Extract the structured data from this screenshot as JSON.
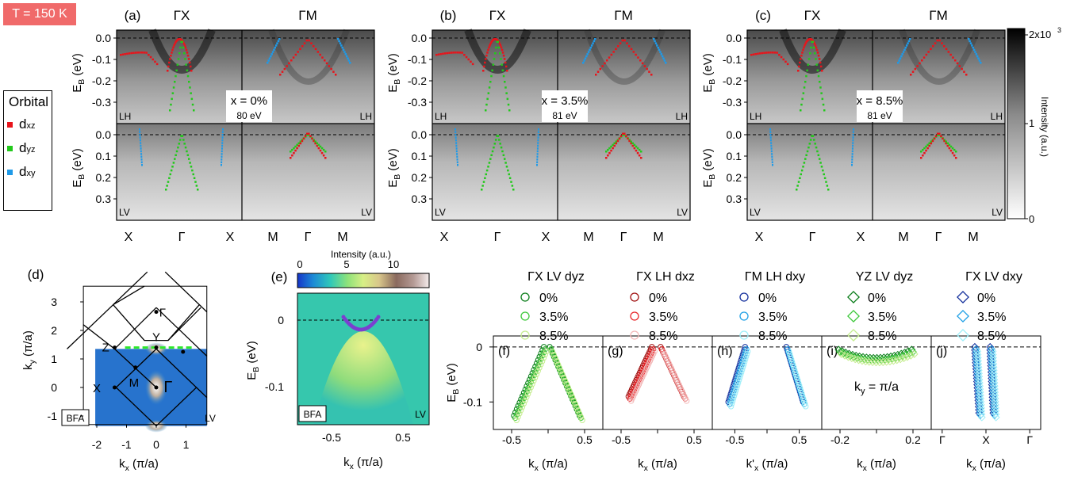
{
  "temperature_label": "T = 150 K",
  "legend": {
    "title": "Orbital",
    "items": [
      {
        "main": "d",
        "sub": "xz",
        "color": "#e8141b"
      },
      {
        "main": "d",
        "sub": "yz",
        "color": "#22c91b"
      },
      {
        "main": "d",
        "sub": "xy",
        "color": "#1f9ae8"
      }
    ]
  },
  "colorbar_gray": {
    "ticks": [
      "2x10",
      "1",
      "0"
    ],
    "exponent": "3",
    "label": "Intensity (a.u.)"
  },
  "colorbar_e": {
    "ticks": [
      "0",
      "5",
      "10"
    ],
    "label": "Intensity (a.u.)"
  },
  "arpes_panels": [
    {
      "letter": "(a)",
      "doping": "x = 0%",
      "energy": "80 eV"
    },
    {
      "letter": "(b)",
      "doping": "x = 3.5%",
      "energy": "81 eV"
    },
    {
      "letter": "(c)",
      "doping": "x = 8.5%",
      "energy": "81 eV"
    }
  ],
  "arpes_common": {
    "dir_left": "ΓX",
    "dir_right": "ΓM",
    "ylabel": "E",
    "ylabel_sub": "B",
    "ylabel_unit": " (eV)",
    "yticks": [
      "0.0",
      "-0.1",
      "-0.2",
      "-0.3"
    ],
    "yticks_lower": [
      "0.0",
      "0.1",
      "0.2",
      "0.3"
    ],
    "xticks_left": [
      "X",
      "Γ",
      "X"
    ],
    "xticks_right": [
      "M",
      "Γ",
      "M"
    ],
    "pol_top": "LH",
    "pol_bottom": "LV"
  },
  "panel_d": {
    "letter": "(d)",
    "xlabel": "k",
    "xlabel_sub": "x",
    "xlabel_unit": " (π/a)",
    "ylabel": "k",
    "ylabel_sub": "y",
    "ylabel_unit": " (π/a)",
    "xticks": [
      "-2",
      "-1",
      "0",
      "1"
    ],
    "yticks": [
      "3",
      "2",
      "1",
      "0",
      "-1"
    ],
    "points": [
      "Γ",
      "Y",
      "Z",
      "M",
      "X",
      "Γ"
    ],
    "tag": "BFA",
    "pol": "LV"
  },
  "panel_e": {
    "letter": "(e)",
    "xticks": [
      "-0.5",
      "0.5"
    ],
    "yticks": [
      "0",
      "-0.1"
    ],
    "xlabel": "k",
    "xlabel_sub": "x",
    "xlabel_unit": " (π/a)",
    "ylabel": "E",
    "ylabel_sub": "B",
    "ylabel_unit": " (eV)",
    "tag": "BFA",
    "pol": "LV"
  },
  "chart_data": {
    "type": "scatter",
    "ylabel": "E_B (eV)",
    "ylim": [
      -0.15,
      0.02
    ],
    "panels": [
      {
        "letter": "(f)",
        "title": "ΓX LV dyz",
        "marker": "circle",
        "xlabel": "k_x (π/a)",
        "xticks": [
          "-0.5",
          "0",
          "0.5"
        ],
        "xlim": [
          -0.75,
          0.75
        ],
        "series": [
          {
            "name": "0%",
            "color": "#0b7d1a"
          },
          {
            "name": "3.5%",
            "color": "#3dc83a"
          },
          {
            "name": "8.5%",
            "color": "#c4ec8e"
          }
        ],
        "branches": [
          {
            "x": [
              -0.45,
              -0.04
            ],
            "y": [
              -0.125,
              0.0
            ]
          },
          {
            "x": [
              0.04,
              0.45
            ],
            "y": [
              0.0,
              -0.125
            ]
          }
        ]
      },
      {
        "letter": "(g)",
        "title": "ΓX LH dxz",
        "marker": "circle",
        "xlabel": "k_x (π/a)",
        "xticks": [
          "-0.5",
          "0",
          "0.5"
        ],
        "xlim": [
          -0.75,
          0.75
        ],
        "series": [
          {
            "name": "0%",
            "color": "#a01010"
          },
          {
            "name": "3.5%",
            "color": "#e8262a"
          },
          {
            "name": "8.5%",
            "color": "#f2b7b7"
          }
        ],
        "branches": [
          {
            "x": [
              -0.38,
              -0.06
            ],
            "y": [
              -0.09,
              0.0
            ]
          },
          {
            "x": [
              0.06,
              0.38
            ],
            "y": [
              0.0,
              -0.09
            ]
          }
        ]
      },
      {
        "letter": "(h)",
        "title": "ΓM LH dxy",
        "marker": "circle",
        "xlabel": "k'_x (π/a)",
        "xticks": [
          "-0.5",
          "0",
          "0.5"
        ],
        "xlim": [
          -0.85,
          0.85
        ],
        "series": [
          {
            "name": "0%",
            "color": "#132f9c"
          },
          {
            "name": "3.5%",
            "color": "#1fa0e6"
          },
          {
            "name": "8.5%",
            "color": "#9eeef8"
          }
        ],
        "branches": [
          {
            "x": [
              -0.58,
              -0.32
            ],
            "y": [
              -0.1,
              0.0
            ]
          },
          {
            "x": [
              0.32,
              0.58
            ],
            "y": [
              0.0,
              -0.1
            ]
          }
        ]
      },
      {
        "letter": "(i)",
        "title": "YZ LV dyz",
        "marker": "diamond",
        "xlabel": "k_x (π/a)",
        "xticks": [
          "-0.2",
          "0",
          "0.2"
        ],
        "xlim": [
          -0.3,
          0.3
        ],
        "annotation": "k_y = π/a",
        "series": [
          {
            "name": "0%",
            "color": "#0b7d1a"
          },
          {
            "name": "3.5%",
            "color": "#3dc83a"
          },
          {
            "name": "8.5%",
            "color": "#c4ec8e"
          }
        ],
        "branches": [
          {
            "x": [
              -0.2,
              0.2
            ],
            "y": [
              -0.02,
              -0.02
            ],
            "curv": 0.015
          }
        ]
      },
      {
        "letter": "(j)",
        "title": "ΓX LV dxy",
        "marker": "diamond",
        "xlabel": "k_x (π/a)",
        "xticks": [
          "Γ",
          "X",
          "Γ"
        ],
        "xlim": [
          -1,
          1
        ],
        "series": [
          {
            "name": "0%",
            "color": "#132f9c"
          },
          {
            "name": "3.5%",
            "color": "#1fa0e6"
          },
          {
            "name": "8.5%",
            "color": "#9eeef8"
          }
        ],
        "branches": [
          {
            "x": [
              -0.18,
              -0.1
            ],
            "y": [
              0.0,
              -0.12
            ]
          },
          {
            "x": [
              0.1,
              0.16
            ],
            "y": [
              0.0,
              -0.12
            ]
          }
        ]
      }
    ]
  }
}
